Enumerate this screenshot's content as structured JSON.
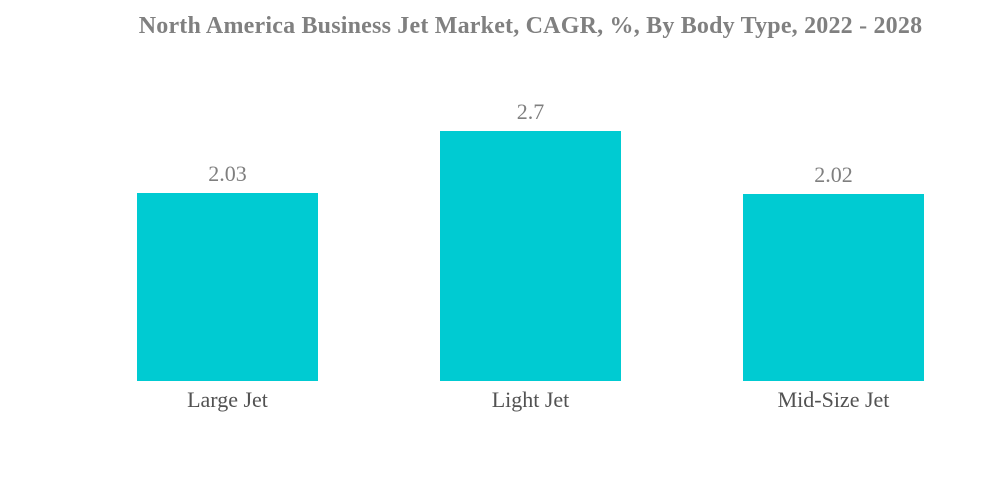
{
  "chart_data": {
    "type": "bar",
    "title": "North America Business Jet Market, CAGR, %, By Body Type, 2022 - 2028",
    "categories": [
      "Large Jet",
      "Light Jet",
      "Mid-Size Jet"
    ],
    "values": [
      2.03,
      2.7,
      2.02
    ],
    "value_labels": [
      "2.03",
      "2.7",
      "2.02"
    ],
    "xlabel": "",
    "ylabel": "",
    "ylim": [
      0,
      3
    ],
    "grid": false,
    "axes_visible": false,
    "legend": "none",
    "bar_color": "#00CBD2",
    "title_color": "#808080",
    "value_label_color": "#7f7f7f",
    "category_label_color": "#525252",
    "background_color": "#ffffff"
  }
}
